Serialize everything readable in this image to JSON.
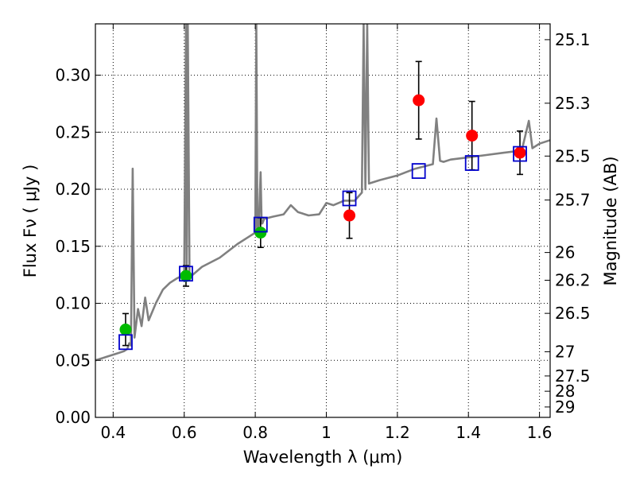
{
  "chart_data": {
    "type": "scatter",
    "title": "",
    "xlabel": "Wavelength  λ (μm)",
    "ylabel": "Flux  Fν  ( μJy )",
    "y2label": "Magnitude (AB)",
    "xlim": [
      0.35,
      1.63
    ],
    "ylim": [
      0.0,
      0.345
    ],
    "grid": true,
    "x_ticks": [
      0.4,
      0.6,
      0.8,
      1.0,
      1.2,
      1.4,
      1.6
    ],
    "x_tick_labels": [
      "0.4",
      "0.6",
      "0.8",
      "1",
      "1.2",
      "1.4",
      "1.6"
    ],
    "y_ticks": [
      0.0,
      0.05,
      0.1,
      0.15,
      0.2,
      0.25,
      0.3
    ],
    "y_tick_labels": [
      "0.00",
      "0.05",
      "0.10",
      "0.15",
      "0.20",
      "0.25",
      "0.30"
    ],
    "y2_tick_labels": [
      "25.1",
      "25.3",
      "25.5",
      "25.7",
      "26",
      "26.2",
      "26.5",
      "27",
      "27.5",
      "28",
      "29"
    ],
    "y2_tick_mags": [
      25.1,
      25.3,
      25.5,
      25.7,
      26.0,
      26.2,
      26.5,
      27.0,
      27.5,
      28.0,
      29.0
    ],
    "zero_point_mag": 23.9,
    "series": [
      {
        "marker": "line",
        "color": "#808080",
        "x": [
          0.35,
          0.38,
          0.41,
          0.43,
          0.44,
          0.445,
          0.45,
          0.455,
          0.46,
          0.47,
          0.48,
          0.49,
          0.5,
          0.52,
          0.54,
          0.56,
          0.58,
          0.6,
          0.605,
          0.607,
          0.61,
          0.615,
          0.62,
          0.65,
          0.7,
          0.75,
          0.78,
          0.8,
          0.803,
          0.806,
          0.81,
          0.815,
          0.818,
          0.82,
          0.825,
          0.85,
          0.88,
          0.9,
          0.92,
          0.95,
          0.98,
          1.0,
          1.02,
          1.05,
          1.08,
          1.1,
          1.105,
          1.11,
          1.115,
          1.12,
          1.15,
          1.2,
          1.25,
          1.3,
          1.31,
          1.32,
          1.33,
          1.35,
          1.4,
          1.45,
          1.5,
          1.55,
          1.57,
          1.58,
          1.6,
          1.63
        ],
        "y": [
          0.05,
          0.053,
          0.056,
          0.058,
          0.06,
          0.065,
          0.063,
          0.218,
          0.07,
          0.095,
          0.08,
          0.105,
          0.085,
          0.1,
          0.112,
          0.118,
          0.122,
          0.125,
          0.345,
          0.122,
          0.345,
          0.125,
          0.124,
          0.132,
          0.14,
          0.152,
          0.158,
          0.162,
          0.345,
          0.165,
          0.168,
          0.215,
          0.17,
          0.17,
          0.174,
          0.176,
          0.178,
          0.186,
          0.18,
          0.177,
          0.178,
          0.188,
          0.186,
          0.19,
          0.19,
          0.197,
          0.345,
          0.2,
          0.345,
          0.205,
          0.208,
          0.212,
          0.218,
          0.222,
          0.262,
          0.225,
          0.224,
          0.226,
          0.228,
          0.23,
          0.232,
          0.234,
          0.26,
          0.236,
          0.24,
          0.243
        ]
      },
      {
        "marker": "circle",
        "color": "#00bb00",
        "x": [
          0.435,
          0.605,
          0.815
        ],
        "y": [
          0.077,
          0.124,
          0.162
        ],
        "yerr": [
          0.014,
          0.009,
          0.013
        ]
      },
      {
        "marker": "circle",
        "color": "#ff0000",
        "x": [
          1.065,
          1.26,
          1.41,
          1.545
        ],
        "y": [
          0.177,
          0.278,
          0.247,
          0.232
        ],
        "yerr": [
          0.02,
          0.034,
          0.03,
          0.019
        ]
      },
      {
        "marker": "open-square",
        "color": "#0000cc",
        "x": [
          0.435,
          0.605,
          0.815,
          1.065,
          1.26,
          1.41,
          1.545
        ],
        "y": [
          0.066,
          0.126,
          0.169,
          0.192,
          0.216,
          0.223,
          0.231
        ]
      }
    ]
  }
}
